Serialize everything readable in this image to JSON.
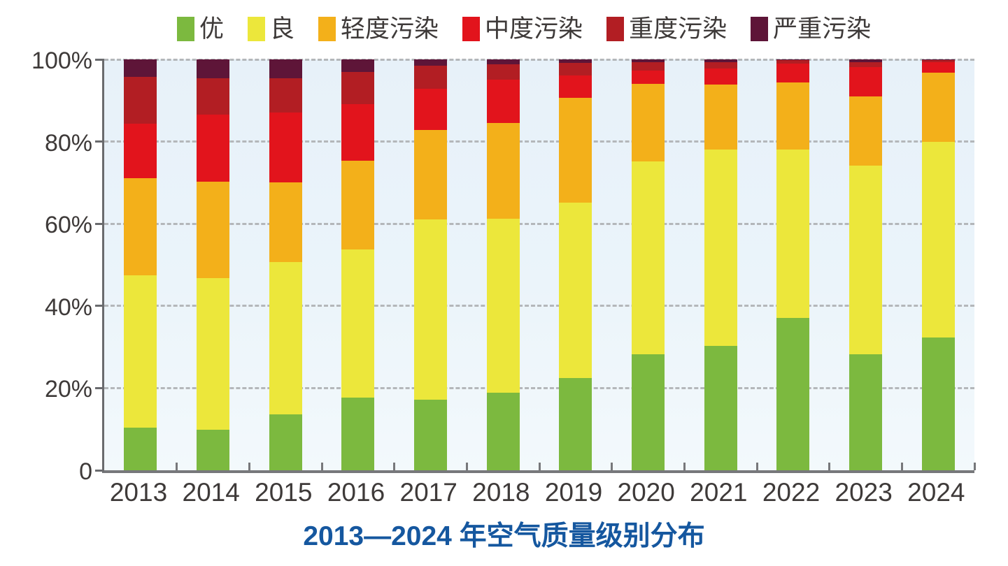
{
  "title": "2013—2024 年空气质量级别分布",
  "colors": {
    "excellent": "#7cb93f",
    "good": "#ece73b",
    "light_pollution": "#f3b01a",
    "moderate_pollution": "#e2141c",
    "heavy_pollution": "#b21e23",
    "severe_pollution": "#5e1538",
    "title_text": "#15579f",
    "axis_text": "#3e3a39",
    "plot_background": "#e7f1f9",
    "gridline": "#b4b7ba"
  },
  "legend": {
    "position": "top",
    "items": [
      "优",
      "良",
      "轻度污染",
      "中度污染",
      "重度污染",
      "严重污染"
    ]
  },
  "chart_data": {
    "type": "bar",
    "stacked": true,
    "unit": "%",
    "title": "2013—2024 年空气质量级别分布",
    "xlabel": "",
    "ylabel": "",
    "ylim": [
      0,
      100
    ],
    "ytick_labels": [
      "100%",
      "80%",
      "60%",
      "40%",
      "20%",
      "0"
    ],
    "ytick_values": [
      100,
      80,
      60,
      40,
      20,
      0
    ],
    "grid": "horizontal-dashed",
    "legend_position": "top",
    "categories": [
      "2013",
      "2014",
      "2015",
      "2016",
      "2017",
      "2018",
      "2019",
      "2020",
      "2021",
      "2022",
      "2023",
      "2024"
    ],
    "series": [
      {
        "name": "优",
        "color": "#7cb93f",
        "values": [
          10.4,
          9.9,
          13.6,
          17.7,
          17.2,
          18.8,
          22.5,
          28.2,
          30.3,
          37.1,
          28.2,
          32.3
        ]
      },
      {
        "name": "良",
        "color": "#ece73b",
        "values": [
          37.1,
          36.8,
          37.1,
          36.1,
          43.8,
          42.5,
          42.6,
          47.0,
          47.8,
          40.9,
          46.0,
          47.7
        ]
      },
      {
        "name": "轻度污染",
        "color": "#f3b01a",
        "values": [
          23.6,
          23.5,
          19.3,
          21.5,
          21.8,
          23.2,
          25.6,
          18.9,
          15.8,
          16.4,
          16.8,
          16.8
        ]
      },
      {
        "name": "中度污染",
        "color": "#e2141c",
        "values": [
          13.3,
          16.3,
          17.0,
          13.8,
          10.0,
          10.6,
          5.4,
          3.2,
          3.9,
          4.6,
          7.1,
          2.5
        ]
      },
      {
        "name": "重度污染",
        "color": "#b21e23",
        "values": [
          11.3,
          9.0,
          8.5,
          7.8,
          5.7,
          3.7,
          3.1,
          2.1,
          1.5,
          0.8,
          1.3,
          0.5
        ]
      },
      {
        "name": "严重污染",
        "color": "#5e1538",
        "values": [
          4.3,
          4.5,
          4.5,
          3.1,
          1.5,
          1.2,
          0.8,
          0.6,
          0.7,
          0.2,
          0.6,
          0.2
        ]
      }
    ]
  }
}
